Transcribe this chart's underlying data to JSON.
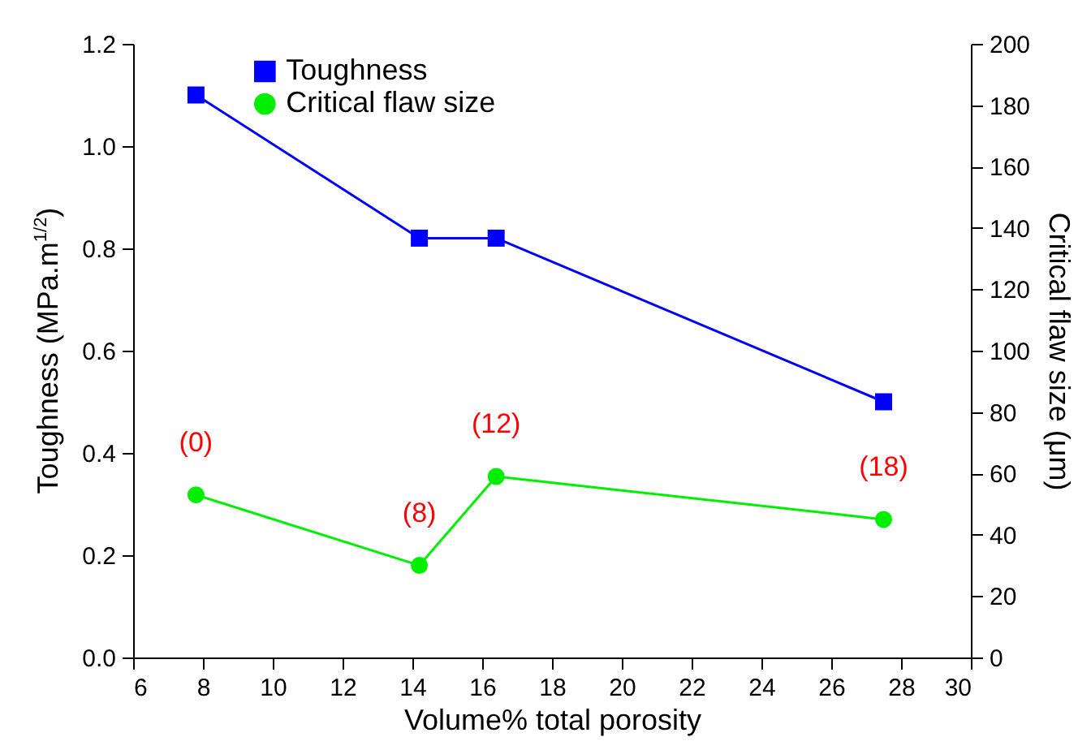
{
  "chart_data": {
    "type": "line",
    "xlabel": "Volume% total porosity",
    "ylabel": "Toughness (MPa.m$^{1/2}$)",
    "y2label": "Critical flaw size (μm)",
    "x": [
      7.8,
      14.2,
      16.4,
      27.5
    ],
    "series": [
      {
        "name": "Toughness",
        "color": "#0000ff",
        "marker": "square",
        "values": [
          1.1,
          0.82,
          0.82,
          0.5
        ]
      },
      {
        "name": "Critical flaw size",
        "color": "#00ee00",
        "marker": "circle",
        "axis": "y2",
        "values": [
          53,
          30,
          59,
          45
        ]
      }
    ],
    "xlim": [
      6,
      30
    ],
    "xticks": [
      6,
      8,
      10,
      12,
      14,
      16,
      18,
      20,
      22,
      24,
      26,
      28,
      30
    ],
    "ylim": [
      0,
      1.2
    ],
    "yticks": [
      {
        "value": 0,
        "label": "0.0"
      },
      {
        "value": 0.2,
        "label": "0.2"
      },
      {
        "value": 0.4,
        "label": "0.4"
      },
      {
        "value": 0.6,
        "label": "0.6"
      },
      {
        "value": 0.8,
        "label": "0.8"
      },
      {
        "value": 1,
        "label": "1.0"
      },
      {
        "value": 1.2,
        "label": "1.2"
      }
    ],
    "y2lim": [
      0,
      200
    ],
    "y2ticks": [
      0,
      20,
      40,
      60,
      80,
      100,
      120,
      140,
      160,
      180,
      200
    ],
    "annotations": [
      "(0)",
      "(8)",
      "(12)",
      "(18)"
    ],
    "legend": "top"
  }
}
